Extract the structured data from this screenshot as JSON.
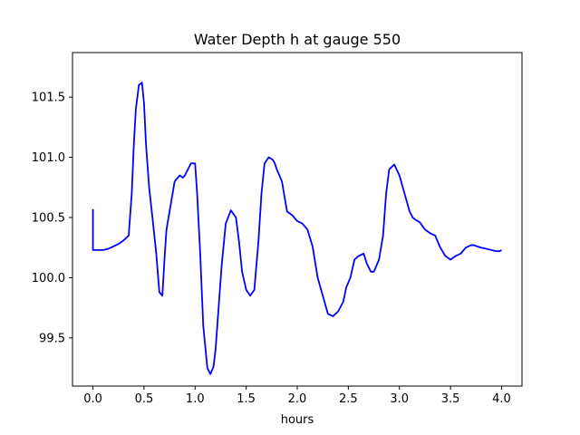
{
  "chart_data": {
    "type": "line",
    "title": "Water Depth h at gauge 550",
    "xlabel": "hours",
    "ylabel": "",
    "xlim": [
      -0.2,
      4.2
    ],
    "ylim": [
      99.1,
      101.87
    ],
    "xticks": [
      0.0,
      0.5,
      1.0,
      1.5,
      2.0,
      2.5,
      3.0,
      3.5,
      4.0
    ],
    "xtick_labels": [
      "0.0",
      "0.5",
      "1.0",
      "1.5",
      "2.0",
      "2.5",
      "3.0",
      "3.5",
      "4.0"
    ],
    "yticks": [
      99.5,
      100.0,
      100.5,
      101.0,
      101.5
    ],
    "ytick_labels": [
      "99.5",
      "100.0",
      "100.5",
      "101.0",
      "101.5"
    ],
    "grid": false,
    "series": [
      {
        "color": "#0000ff",
        "x": [
          0.0,
          0.0,
          0.05,
          0.1,
          0.15,
          0.2,
          0.25,
          0.3,
          0.35,
          0.38,
          0.4,
          0.42,
          0.45,
          0.48,
          0.5,
          0.52,
          0.55,
          0.58,
          0.62,
          0.65,
          0.68,
          0.7,
          0.72,
          0.75,
          0.8,
          0.85,
          0.88,
          0.9,
          0.93,
          0.96,
          1.0,
          1.02,
          1.05,
          1.08,
          1.12,
          1.15,
          1.18,
          1.2,
          1.23,
          1.26,
          1.3,
          1.35,
          1.4,
          1.43,
          1.46,
          1.5,
          1.54,
          1.58,
          1.62,
          1.65,
          1.68,
          1.72,
          1.76,
          1.78,
          1.8,
          1.85,
          1.9,
          1.95,
          2.0,
          2.05,
          2.1,
          2.15,
          2.2,
          2.25,
          2.3,
          2.35,
          2.4,
          2.45,
          2.48,
          2.52,
          2.56,
          2.6,
          2.65,
          2.68,
          2.72,
          2.75,
          2.8,
          2.84,
          2.87,
          2.9,
          2.95,
          3.0,
          3.05,
          3.1,
          3.13,
          3.16,
          3.2,
          3.25,
          3.3,
          3.35,
          3.4,
          3.45,
          3.5,
          3.55,
          3.6,
          3.65,
          3.7,
          3.73,
          3.76,
          3.8,
          3.85,
          3.9,
          3.95,
          3.98,
          4.0
        ],
        "y": [
          100.57,
          100.23,
          100.23,
          100.23,
          100.24,
          100.26,
          100.28,
          100.31,
          100.35,
          100.7,
          101.1,
          101.4,
          101.6,
          101.62,
          101.45,
          101.1,
          100.75,
          100.52,
          100.2,
          99.88,
          99.85,
          100.15,
          100.4,
          100.55,
          100.8,
          100.85,
          100.83,
          100.85,
          100.9,
          100.95,
          100.95,
          100.7,
          100.2,
          99.6,
          99.25,
          99.2,
          99.26,
          99.4,
          99.75,
          100.1,
          100.45,
          100.56,
          100.5,
          100.3,
          100.05,
          99.9,
          99.85,
          99.9,
          100.3,
          100.7,
          100.95,
          101.0,
          100.98,
          100.95,
          100.9,
          100.8,
          100.55,
          100.52,
          100.47,
          100.45,
          100.4,
          100.26,
          100.0,
          99.85,
          99.7,
          99.68,
          99.72,
          99.8,
          99.92,
          100.0,
          100.15,
          100.18,
          100.2,
          100.12,
          100.05,
          100.05,
          100.15,
          100.35,
          100.7,
          100.9,
          100.94,
          100.85,
          100.7,
          100.55,
          100.5,
          100.48,
          100.46,
          100.4,
          100.37,
          100.35,
          100.25,
          100.18,
          100.15,
          100.18,
          100.2,
          100.25,
          100.27,
          100.27,
          100.26,
          100.25,
          100.24,
          100.23,
          100.22,
          100.22,
          100.23
        ]
      }
    ]
  }
}
